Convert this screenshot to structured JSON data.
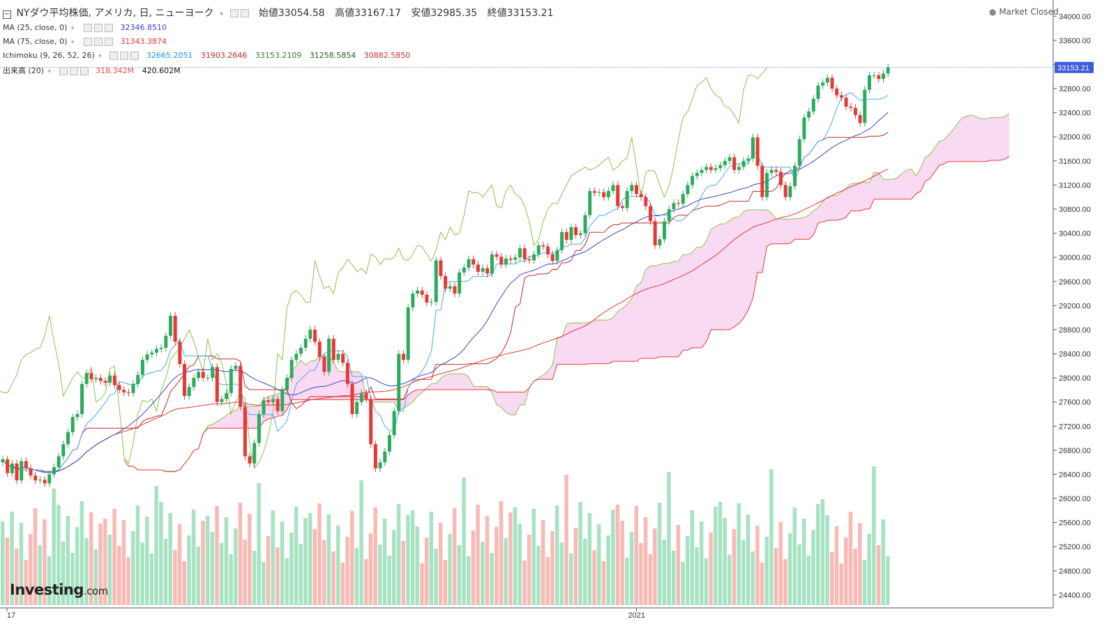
{
  "header": {
    "title": "NYダウ平均株価, アメリカ, 日, ニューヨーク",
    "open_label": "始値",
    "open": "33054.58",
    "high_label": "高値",
    "high": "33167.17",
    "low_label": "安値",
    "low": "32985.35",
    "close_label": "終値",
    "close": "33153.21",
    "market_status": "Market Closed",
    "collapse_icon": "minus-box-icon"
  },
  "indicators": {
    "ma25": {
      "label": "MA (25, close, 0)",
      "value": "32346.8510",
      "color": "#3b43c8"
    },
    "ma75": {
      "label": "MA (75, close, 0)",
      "value": "31343.3874",
      "color": "#e53935"
    },
    "ichimoku": {
      "label": "Ichimoku (9, 26, 52, 26)",
      "values": [
        "32665.2051",
        "31903.2646",
        "33153.2109",
        "31258.5854",
        "30882.5850"
      ],
      "colors": [
        "#1e90ff",
        "#c62828",
        "#2e7d32",
        "#1b5e20",
        "#d32f2f"
      ]
    },
    "volume": {
      "label": "出来高 (20)",
      "value1": "318.342M",
      "value1_color": "#ef5350",
      "value2": "420.602M"
    }
  },
  "price_tag": "33153.21",
  "logo": {
    "main": "Investing",
    "suffix": ".com"
  },
  "chart_data": {
    "type": "candlestick",
    "title": "NYダウ平均株価, アメリカ, 日, ニューヨーク",
    "y_ticks": [
      24400,
      24800,
      25200,
      25600,
      26000,
      26400,
      26800,
      27200,
      27600,
      28000,
      28400,
      28800,
      29200,
      29600,
      30000,
      30400,
      30800,
      31200,
      31600,
      32000,
      32400,
      32800,
      33200,
      33600,
      34000
    ],
    "y_tick_labels": [
      "24400.00",
      "24800.00",
      "25200.00",
      "25600.00",
      "26000.00",
      "26400.00",
      "26800.00",
      "27200.00",
      "27600.00",
      "28000.00",
      "28400.00",
      "28800.00",
      "29200.00",
      "29600.00",
      "30000.00",
      "30400.00",
      "30800.00",
      "31200.00",
      "31600.00",
      "32000.00",
      "32400.00",
      "32800.00",
      "33200.00",
      "33600.00",
      "34000.00"
    ],
    "ylim": [
      24000,
      34200
    ],
    "x_labels": [
      {
        "text": "17",
        "index": 0
      },
      {
        "text": "2021",
        "index": 136
      }
    ],
    "colors": {
      "up": "#2eaa5c",
      "down": "#e53935",
      "cloud": "#f8d6f2",
      "cloud_edge_a": "#8bc34a",
      "cloud_edge_b": "#e53935",
      "chikou": "#8bc34a",
      "tenkan": "#45aaf2",
      "kijun": "#c62828",
      "ma25": "#3b43c8",
      "ma75": "#e53935"
    },
    "closes": [
      26650,
      26420,
      26580,
      26300,
      26620,
      26500,
      26380,
      26300,
      26310,
      26250,
      26400,
      26520,
      26700,
      26900,
      27100,
      27350,
      27400,
      27900,
      28080,
      27980,
      28000,
      27950,
      27920,
      28040,
      27880,
      27800,
      27760,
      27750,
      27900,
      28050,
      28300,
      28390,
      28420,
      28480,
      28500,
      28700,
      29030,
      28600,
      28230,
      27700,
      27850,
      28000,
      28100,
      28000,
      28000,
      28180,
      27600,
      27650,
      27750,
      28150,
      28200,
      27520,
      26700,
      26580,
      26920,
      27400,
      27630,
      27600,
      27650,
      27450,
      27800,
      28000,
      28300,
      28400,
      28500,
      28650,
      28800,
      28600,
      28350,
      28100,
      28650,
      28300,
      28400,
      28250,
      27900,
      27400,
      27600,
      27750,
      27650,
      26900,
      26500,
      26600,
      26780,
      27050,
      27450,
      28400,
      28300,
      29170,
      29400,
      29450,
      29380,
      29250,
      29260,
      29950,
      29690,
      29480,
      29520,
      29400,
      29750,
      29830,
      29970,
      29880,
      29760,
      29820,
      29730,
      30050,
      30010,
      29880,
      29980,
      29960,
      30000,
      30150,
      29970,
      29950,
      30050,
      30200,
      30180,
      30050,
      29940,
      30120,
      30420,
      30290,
      30500,
      30370,
      30400,
      30700,
      31100,
      31070,
      31080,
      31000,
      31100,
      31200,
      30850,
      30820,
      31100,
      31200,
      31050,
      31000,
      30850,
      30600,
      30200,
      30300,
      30600,
      30800,
      30900,
      30890,
      31050,
      31200,
      31350,
      31400,
      31450,
      31500,
      31450,
      31480,
      31530,
      31600,
      31660,
      31450,
      31500,
      31600,
      31640,
      31990,
      31520,
      31000,
      31400,
      31450,
      31420,
      31200,
      31000,
      31180,
      31520,
      31960,
      32320,
      32420,
      32630,
      32850,
      32900,
      32980,
      32800,
      32690,
      32650,
      32500,
      32480,
      32360,
      32230,
      32780,
      33020,
      33020,
      32960,
      33050,
      33150
    ],
    "volume_ylim": [
      0,
      500
    ],
    "volume_ma_label": "出来高 (20)"
  }
}
